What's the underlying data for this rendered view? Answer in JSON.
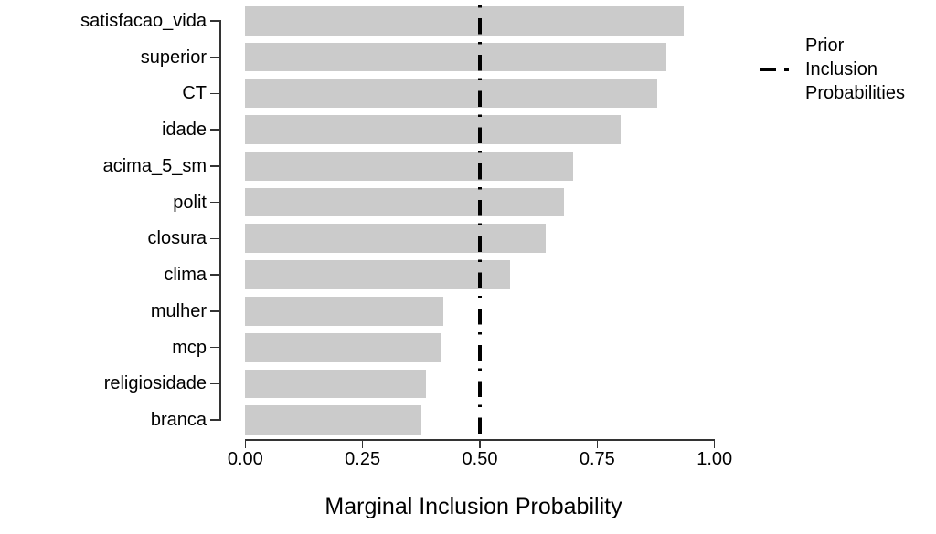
{
  "chart_data": {
    "type": "bar",
    "orientation": "horizontal",
    "categories": [
      "satisfacao_vida",
      "superior",
      "CT",
      "idade",
      "acima_5_sm",
      "polit",
      "closura",
      "clima",
      "mulher",
      "mcp",
      "religiosidade",
      "branca"
    ],
    "values": [
      0.934,
      0.897,
      0.877,
      0.8,
      0.699,
      0.679,
      0.64,
      0.564,
      0.422,
      0.416,
      0.386,
      0.376
    ],
    "title": "",
    "xlabel": "Marginal Inclusion Probability",
    "ylabel": "",
    "xlim": [
      0,
      1
    ],
    "x_tick_values": [
      0,
      0.25,
      0.5,
      0.75,
      1
    ],
    "x_tick_labels": [
      "0.00",
      "0.25",
      "0.50",
      "0.75",
      "1.00"
    ],
    "reference_line": {
      "value": 0.5,
      "style": "dashed",
      "color": "#000000"
    },
    "grid": false,
    "legend_position": "right",
    "colors": {
      "bar_fill": "#cbcbcb",
      "axis": "#333333",
      "text": "#000000",
      "prior_line": "#000000",
      "background": "#ffffff"
    }
  },
  "legend": {
    "lines": [
      "Prior",
      "Inclusion",
      "Probabilities"
    ]
  }
}
